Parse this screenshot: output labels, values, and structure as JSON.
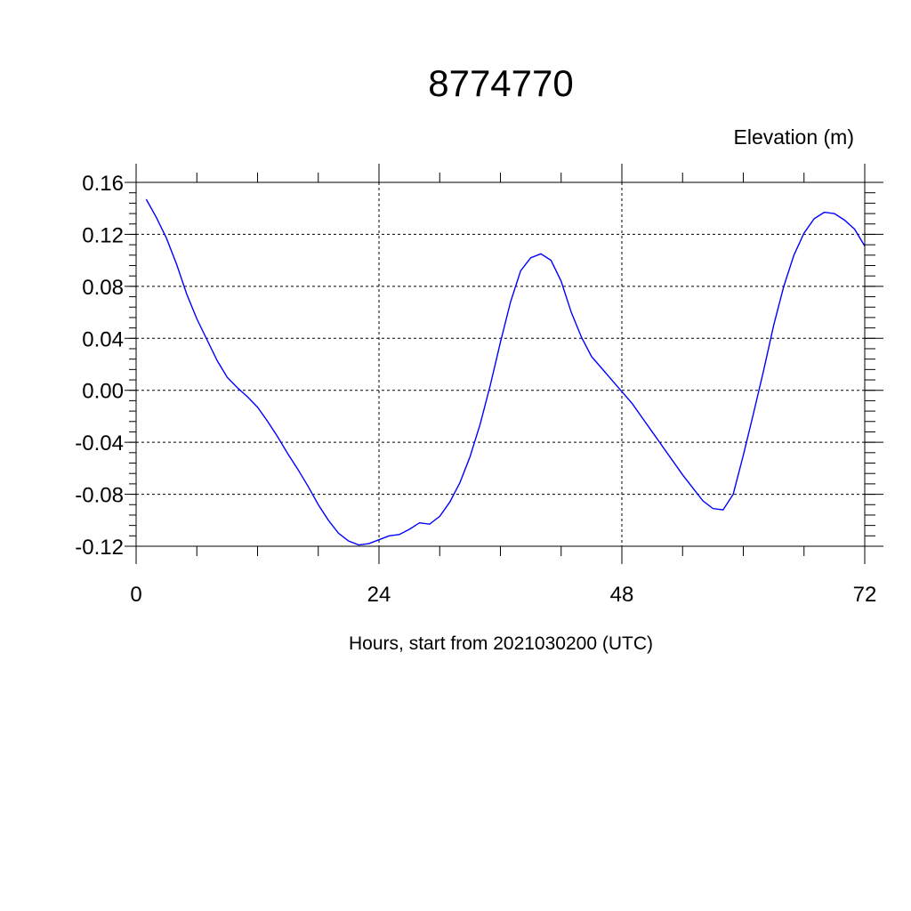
{
  "chart_data": {
    "type": "line",
    "title": "8774770",
    "ylabel": "Elevation (m)",
    "xlabel": "Hours, start from 2021030200 (UTC)",
    "xlim": [
      0,
      72
    ],
    "ylim": [
      -0.12,
      0.16
    ],
    "x_ticks": [
      0,
      24,
      48,
      72
    ],
    "x_tick_labels": [
      "0",
      "24",
      "48",
      "72"
    ],
    "y_ticks": [
      -0.12,
      -0.08,
      -0.04,
      0.0,
      0.04,
      0.08,
      0.12,
      0.16
    ],
    "y_tick_labels": [
      "-0.12",
      "-0.08",
      "-0.04",
      "0.00",
      "0.04",
      "0.08",
      "0.12",
      "0.16"
    ],
    "grid": true,
    "line_color": "#0000ff",
    "series": [
      {
        "x": [
          1,
          2,
          3,
          4,
          5,
          6,
          7,
          8,
          9,
          10,
          11,
          12,
          13,
          14,
          15,
          16,
          17,
          18,
          19,
          20,
          21,
          22,
          23,
          24,
          25,
          26,
          27,
          28,
          29,
          30,
          31,
          32,
          33,
          34,
          35,
          36,
          37,
          38,
          39,
          40,
          41,
          42,
          43,
          44,
          45,
          46,
          47,
          48,
          49,
          50,
          51,
          52,
          53,
          54,
          55,
          56,
          57,
          58,
          59,
          60,
          61,
          62,
          63,
          64,
          65,
          66,
          67,
          68,
          69,
          70,
          71,
          72
        ],
        "y": [
          0.147,
          0.133,
          0.117,
          0.097,
          0.074,
          0.055,
          0.039,
          0.023,
          0.01,
          0.002,
          -0.005,
          -0.013,
          -0.024,
          -0.036,
          -0.049,
          -0.061,
          -0.074,
          -0.088,
          -0.1,
          -0.11,
          -0.116,
          -0.119,
          -0.118,
          -0.115,
          -0.112,
          -0.111,
          -0.107,
          -0.102,
          -0.103,
          -0.097,
          -0.086,
          -0.071,
          -0.051,
          -0.026,
          0.004,
          0.037,
          0.068,
          0.092,
          0.102,
          0.105,
          0.1,
          0.084,
          0.06,
          0.041,
          0.026,
          0.017,
          0.008,
          -0.001,
          -0.01,
          -0.021,
          -0.032,
          -0.043,
          -0.054,
          -0.065,
          -0.075,
          -0.085,
          -0.091,
          -0.092,
          -0.08,
          -0.05,
          -0.018,
          0.015,
          0.05,
          0.08,
          0.104,
          0.121,
          0.132,
          0.137,
          0.136,
          0.131,
          0.124,
          0.111
        ]
      }
    ]
  }
}
